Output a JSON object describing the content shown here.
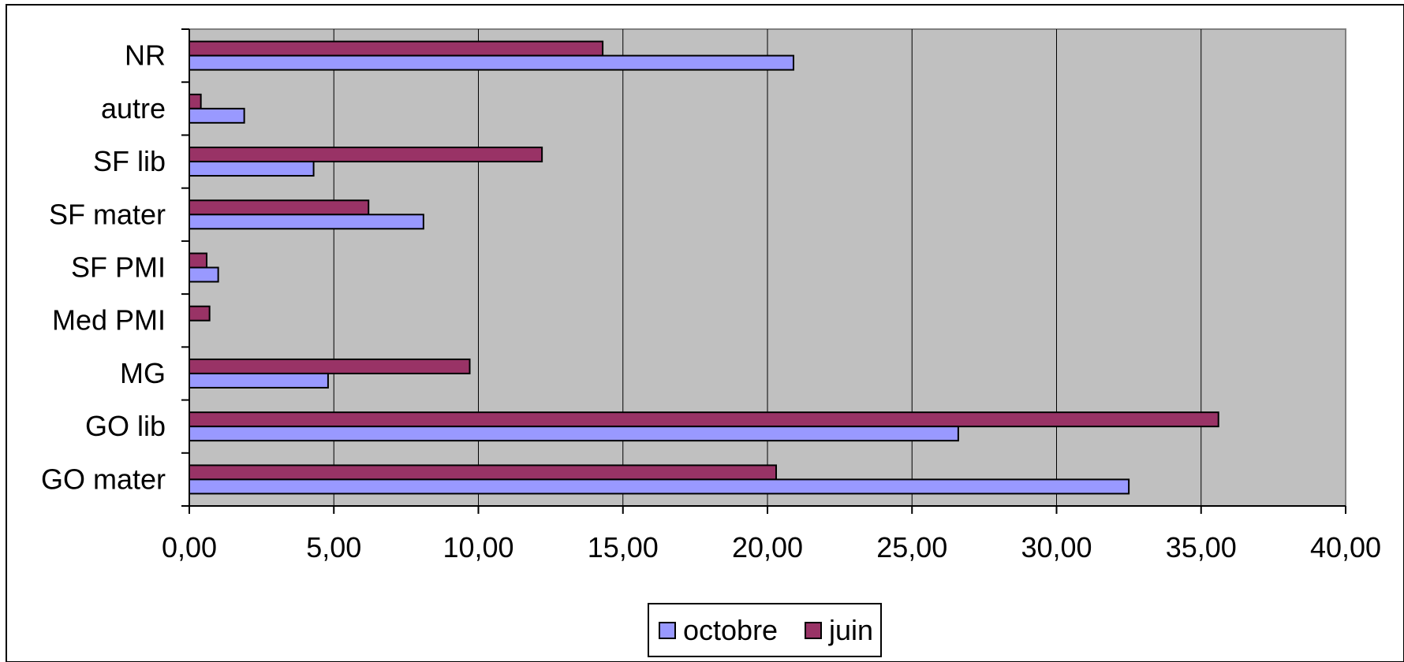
{
  "chart_data": {
    "type": "bar",
    "orientation": "horizontal",
    "categories": [
      "GO mater",
      "GO lib",
      "MG",
      "Med PMI",
      "SF PMI",
      "SF mater",
      "SF lib",
      "autre",
      "NR"
    ],
    "series": [
      {
        "name": "octobre",
        "color": "#9999ff",
        "values": [
          32.5,
          26.6,
          4.8,
          0.0,
          1.0,
          8.1,
          4.3,
          1.9,
          20.9
        ]
      },
      {
        "name": "juin",
        "color": "#993366",
        "values": [
          20.3,
          35.6,
          9.7,
          0.7,
          0.6,
          6.2,
          12.2,
          0.4,
          14.3
        ]
      }
    ],
    "xlim": [
      0,
      40
    ],
    "xticks": [
      0,
      5,
      10,
      15,
      20,
      25,
      30,
      35,
      40
    ],
    "xtick_labels": [
      "0,00",
      "5,00",
      "10,00",
      "15,00",
      "20,00",
      "25,00",
      "30,00",
      "35,00",
      "40,00"
    ],
    "grid": "vertical",
    "plot_background": "#c0c0c0",
    "legend_position": "bottom-center"
  }
}
